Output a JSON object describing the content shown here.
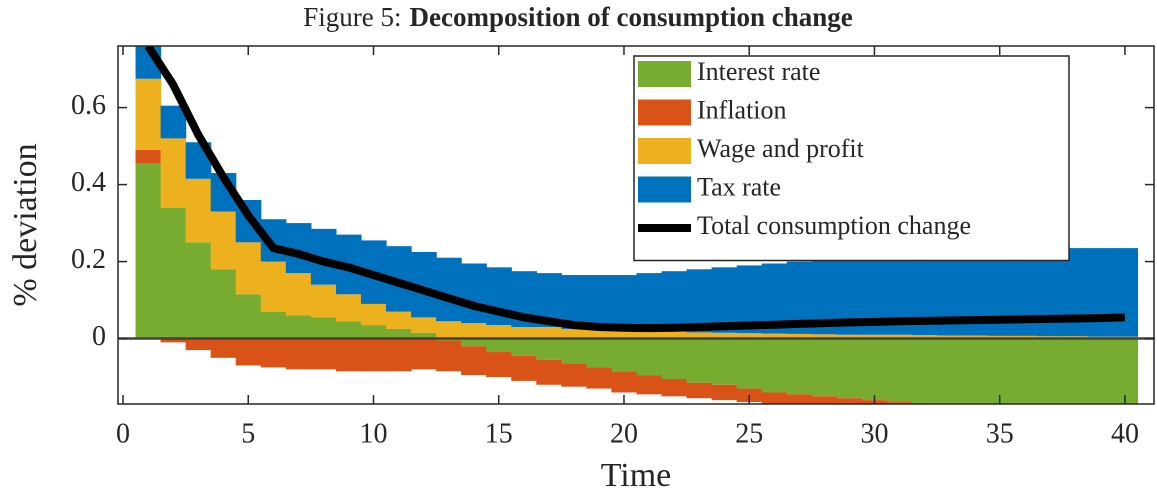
{
  "chart_data": {
    "type": "stacked_bar_line",
    "figure_label": "Figure 5:",
    "title": "Decomposition of consumption change",
    "xlabel": "Time",
    "ylabel": "% deviation",
    "x": [
      1,
      2,
      3,
      4,
      5,
      6,
      7,
      8,
      9,
      10,
      11,
      12,
      13,
      14,
      15,
      16,
      17,
      18,
      19,
      20,
      21,
      22,
      23,
      24,
      25,
      26,
      27,
      28,
      29,
      30,
      31,
      32,
      33,
      34,
      35,
      36,
      37,
      38,
      39,
      40
    ],
    "series": [
      {
        "name": "Interest rate",
        "color": "#77ac30",
        "values": [
          0.455,
          0.34,
          0.25,
          0.18,
          0.115,
          0.07,
          0.06,
          0.055,
          0.045,
          0.035,
          0.025,
          0.015,
          -0.005,
          -0.02,
          -0.035,
          -0.045,
          -0.055,
          -0.065,
          -0.075,
          -0.085,
          -0.095,
          -0.105,
          -0.115,
          -0.12,
          -0.13,
          -0.14,
          -0.145,
          -0.15,
          -0.155,
          -0.16,
          -0.165,
          -0.17,
          -0.175,
          -0.18,
          -0.185,
          -0.19,
          -0.19,
          -0.195,
          -0.2,
          -0.2
        ]
      },
      {
        "name": "Inflation",
        "color": "#d95319",
        "values": [
          0.035,
          -0.01,
          -0.03,
          -0.05,
          -0.07,
          -0.075,
          -0.08,
          -0.08,
          -0.085,
          -0.085,
          -0.085,
          -0.08,
          -0.08,
          -0.075,
          -0.065,
          -0.065,
          -0.065,
          -0.06,
          -0.055,
          -0.055,
          -0.05,
          -0.045,
          -0.04,
          -0.04,
          -0.035,
          -0.03,
          -0.03,
          -0.025,
          -0.025,
          -0.025,
          -0.02,
          -0.02,
          -0.02,
          -0.02,
          -0.02,
          -0.02,
          -0.02,
          -0.02,
          -0.02,
          -0.02
        ]
      },
      {
        "name": "Wage and profit",
        "color": "#edb120",
        "values": [
          0.185,
          0.18,
          0.165,
          0.15,
          0.135,
          0.13,
          0.11,
          0.085,
          0.07,
          0.055,
          0.045,
          0.04,
          0.045,
          0.04,
          0.035,
          0.03,
          0.03,
          0.025,
          0.025,
          0.02,
          0.02,
          0.018,
          0.016,
          0.015,
          0.014,
          0.013,
          0.012,
          0.011,
          0.01,
          0.01,
          0.01,
          0.009,
          0.008,
          0.008,
          0.007,
          0.007,
          0.006,
          0.006,
          0.005,
          0.005
        ]
      },
      {
        "name": "Tax rate",
        "color": "#0072bd",
        "values": [
          0.125,
          0.085,
          0.095,
          0.1,
          0.11,
          0.11,
          0.13,
          0.145,
          0.155,
          0.165,
          0.17,
          0.17,
          0.165,
          0.155,
          0.15,
          0.145,
          0.14,
          0.14,
          0.14,
          0.145,
          0.15,
          0.157,
          0.164,
          0.17,
          0.176,
          0.182,
          0.188,
          0.194,
          0.2,
          0.205,
          0.21,
          0.211,
          0.217,
          0.217,
          0.223,
          0.223,
          0.224,
          0.229,
          0.23,
          0.23
        ]
      }
    ],
    "line": {
      "name": "Total consumption change",
      "color": "#000000",
      "values": [
        0.76,
        0.66,
        0.53,
        0.42,
        0.32,
        0.235,
        0.22,
        0.2,
        0.185,
        0.165,
        0.145,
        0.125,
        0.105,
        0.085,
        0.07,
        0.055,
        0.045,
        0.035,
        0.03,
        0.028,
        0.027,
        0.028,
        0.03,
        0.032,
        0.034,
        0.036,
        0.038,
        0.04,
        0.042,
        0.043,
        0.045,
        0.046,
        0.047,
        0.048,
        0.049,
        0.05,
        0.051,
        0.052,
        0.053,
        0.055
      ]
    },
    "xlim": [
      -0.2,
      41.2
    ],
    "ylim": [
      -0.17,
      0.76
    ],
    "xticks": [
      0,
      5,
      10,
      15,
      20,
      25,
      30,
      35,
      40
    ],
    "yticks": [
      0,
      0.2,
      0.4,
      0.6
    ],
    "legend": "northeast"
  }
}
